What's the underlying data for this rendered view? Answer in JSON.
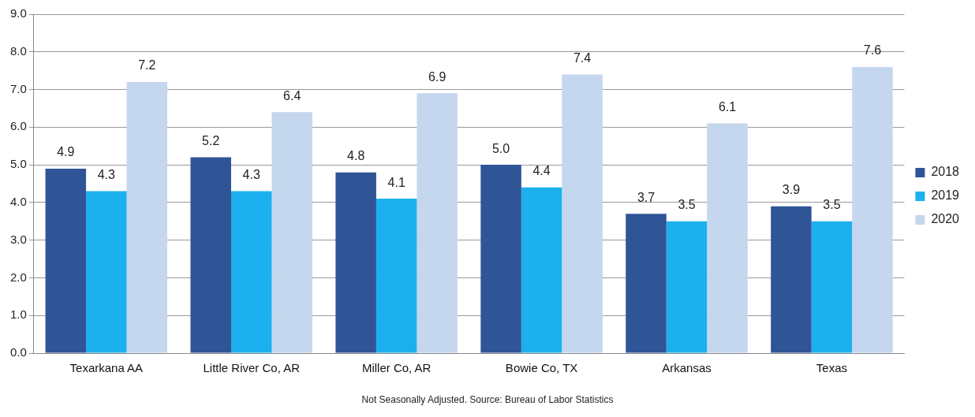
{
  "chart_data": {
    "type": "bar",
    "categories": [
      "Texarkana AA",
      "Little River Co, AR",
      "Miller Co, AR",
      "Bowie Co, TX",
      "Arkansas",
      "Texas"
    ],
    "series": [
      {
        "name": "2018",
        "color": "#2f5597",
        "values": [
          4.9,
          5.2,
          4.8,
          5.0,
          3.7,
          3.9
        ],
        "value_labels": [
          "4.9",
          "5.2",
          "4.8",
          "5.0",
          "3.7",
          "3.9"
        ]
      },
      {
        "name": "2019",
        "color": "#1cb0ee",
        "values": [
          4.3,
          4.3,
          4.1,
          4.4,
          3.5,
          3.5
        ],
        "value_labels": [
          "4.3",
          "4.3",
          "4.1",
          "4.4",
          "3.5",
          "3.5"
        ]
      },
      {
        "name": "2020",
        "color": "#c5d7ee",
        "values": [
          7.2,
          6.4,
          6.9,
          7.4,
          6.1,
          7.6
        ],
        "value_labels": [
          "7.2",
          "6.4",
          "6.9",
          "7.4",
          "6.1",
          "7.6"
        ]
      }
    ],
    "ylim": [
      0,
      9
    ],
    "yticks": [
      {
        "value": 0,
        "label": "0.0"
      },
      {
        "value": 1,
        "label": "1.0"
      },
      {
        "value": 2,
        "label": "2.0"
      },
      {
        "value": 3,
        "label": "3.0"
      },
      {
        "value": 4,
        "label": "4.0"
      },
      {
        "value": 5,
        "label": "5.0"
      },
      {
        "value": 6,
        "label": "6.0"
      },
      {
        "value": 7,
        "label": "7.0"
      },
      {
        "value": 8,
        "label": "8.0"
      },
      {
        "value": 9,
        "label": "9.0"
      }
    ],
    "grid": "y",
    "legend": "right",
    "annotations": [
      "Not Seasonally Adjusted.   Source: Bureau of Labor Statistics"
    ]
  }
}
